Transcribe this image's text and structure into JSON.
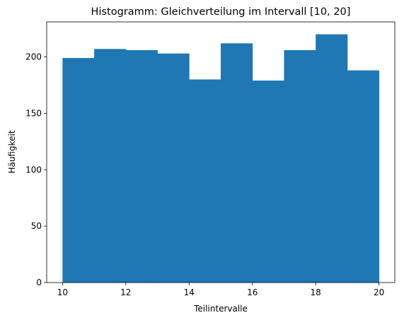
{
  "chart_data": {
    "type": "bar",
    "title": "Histogramm: Gleichverteilung im Intervall [10, 20]",
    "xlabel": "Teilintervalle",
    "ylabel": "Häufigkeit",
    "bin_edges": [
      10,
      11,
      12,
      13,
      14,
      15,
      16,
      17,
      18,
      19,
      20
    ],
    "values": [
      199,
      207,
      206,
      203,
      180,
      212,
      179,
      206,
      220,
      188
    ],
    "xlim": [
      9.5,
      20.5
    ],
    "ylim": [
      0,
      231
    ],
    "xticks": [
      "10",
      "12",
      "14",
      "16",
      "18",
      "20"
    ],
    "yticks": [
      "0",
      "50",
      "100",
      "150",
      "200"
    ],
    "bar_color": "#1f77b4",
    "grid": false
  }
}
